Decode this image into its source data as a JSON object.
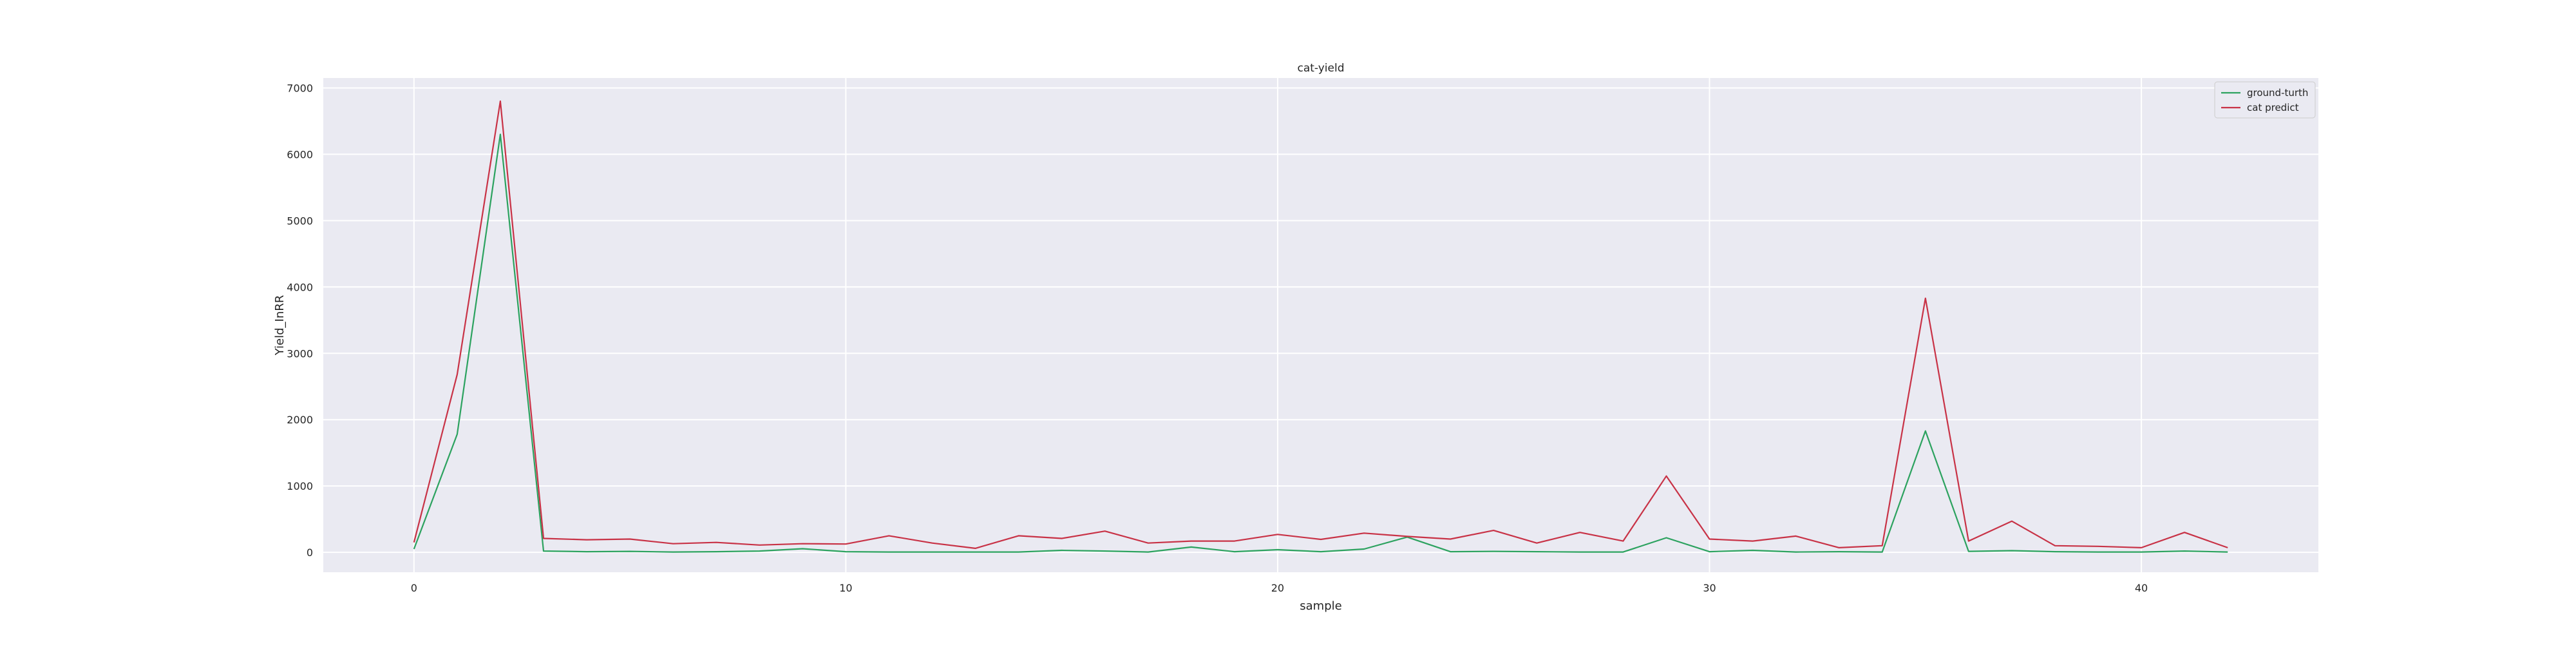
{
  "chart_data": {
    "type": "line",
    "title": "cat-yield",
    "xlabel": "sample",
    "ylabel": "Yield_InRR",
    "xlim": [
      -2.1,
      44.1
    ],
    "ylim": [
      -300,
      7150
    ],
    "x_ticks": [
      0,
      10,
      20,
      30,
      40
    ],
    "y_ticks": [
      0,
      1000,
      2000,
      3000,
      4000,
      5000,
      6000,
      7000
    ],
    "grid": true,
    "legend_position": "top-right",
    "x": [
      0,
      1,
      2,
      3,
      4,
      5,
      6,
      7,
      8,
      9,
      10,
      11,
      12,
      13,
      14,
      15,
      16,
      17,
      18,
      19,
      20,
      21,
      22,
      23,
      24,
      25,
      26,
      27,
      28,
      29,
      30,
      31,
      32,
      33,
      34,
      35,
      36,
      37,
      38,
      39,
      40,
      41,
      42
    ],
    "series": [
      {
        "name": "ground-turth",
        "color": "#2ca25f",
        "values": [
          50,
          1780,
          6300,
          20,
          10,
          15,
          5,
          10,
          20,
          55,
          10,
          5,
          5,
          5,
          5,
          30,
          20,
          5,
          80,
          10,
          40,
          10,
          50,
          230,
          10,
          15,
          10,
          5,
          5,
          220,
          10,
          30,
          5,
          10,
          5,
          1830,
          15,
          25,
          10,
          5,
          5,
          20,
          5
        ]
      },
      {
        "name": "cat predict",
        "color": "#c83246",
        "values": [
          150,
          2680,
          6800,
          210,
          190,
          200,
          130,
          150,
          110,
          130,
          125,
          250,
          140,
          60,
          250,
          210,
          320,
          140,
          170,
          170,
          270,
          195,
          290,
          240,
          200,
          330,
          140,
          300,
          170,
          1150,
          200,
          170,
          245,
          70,
          100,
          3830,
          170,
          470,
          100,
          90,
          70,
          300,
          70
        ]
      }
    ]
  }
}
